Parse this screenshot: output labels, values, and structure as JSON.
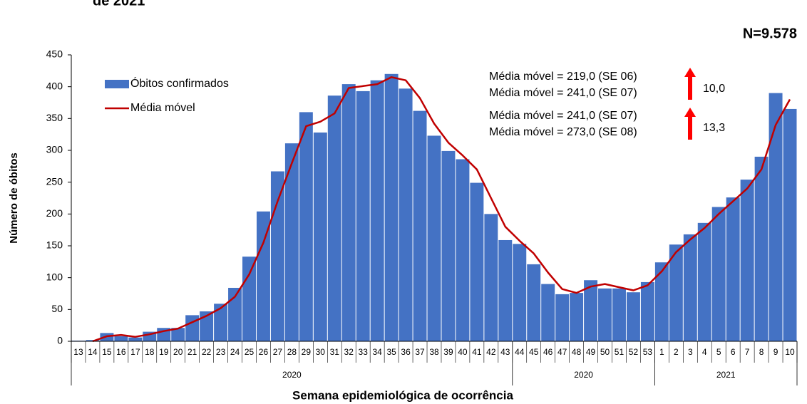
{
  "chart_data": {
    "type": "bar",
    "title": "de 2021",
    "n_label": "N=9.578",
    "x_label": "Semana epidemiológica de ocorrência",
    "y_label": "Número de óbitos",
    "categories": [
      "13",
      "14",
      "15",
      "16",
      "17",
      "18",
      "19",
      "20",
      "21",
      "22",
      "23",
      "24",
      "25",
      "26",
      "27",
      "28",
      "29",
      "30",
      "31",
      "32",
      "33",
      "34",
      "35",
      "36",
      "37",
      "38",
      "39",
      "40",
      "41",
      "42",
      "43",
      "44",
      "45",
      "46",
      "47",
      "48",
      "49",
      "50",
      "51",
      "52",
      "53",
      "1",
      "2",
      "3",
      "4",
      "5",
      "6",
      "7",
      "8",
      "9",
      "10"
    ],
    "x_groups": [
      {
        "label": "2020",
        "span": 31
      },
      {
        "label": "2020",
        "span": 10
      },
      {
        "label": "2021",
        "span": 10
      }
    ],
    "series": [
      {
        "name": "Óbitos confirmados",
        "type": "bar",
        "color": "#4472c4",
        "values": [
          1,
          2,
          13,
          8,
          6,
          15,
          21,
          21,
          41,
          47,
          59,
          84,
          133,
          204,
          267,
          311,
          360,
          328,
          386,
          404,
          393,
          410,
          420,
          397,
          362,
          323,
          299,
          286,
          249,
          200,
          159,
          153,
          121,
          90,
          74,
          76,
          96,
          83,
          83,
          77,
          93,
          124,
          152,
          168,
          186,
          211,
          226,
          254,
          290,
          390,
          365
        ]
      },
      {
        "name": "Média móvel",
        "type": "line",
        "color": "#c00000",
        "values": [
          null,
          0,
          8,
          10,
          7,
          11,
          16,
          20,
          30,
          40,
          52,
          70,
          105,
          155,
          220,
          280,
          338,
          345,
          358,
          398,
          401,
          404,
          415,
          410,
          382,
          342,
          312,
          292,
          270,
          225,
          180,
          158,
          138,
          108,
          82,
          76,
          86,
          90,
          85,
          80,
          88,
          110,
          140,
          160,
          178,
          200,
          220,
          240,
          270,
          340,
          380
        ]
      }
    ],
    "annotations": [
      {
        "lines": [
          "Média móvel  = 219,0 (SE 06)",
          "Média móvel  = 241,0 (SE 07)"
        ],
        "change": "10,0"
      },
      {
        "lines": [
          "Média móvel  = 241,0 (SE 07)",
          "Média móvel  = 273,0 (SE 08)"
        ],
        "change": "13,3"
      }
    ],
    "ylim": [
      0,
      450
    ],
    "yticks": [
      0,
      50,
      100,
      150,
      200,
      250,
      300,
      350,
      400,
      450
    ],
    "legend": "upper left"
  }
}
